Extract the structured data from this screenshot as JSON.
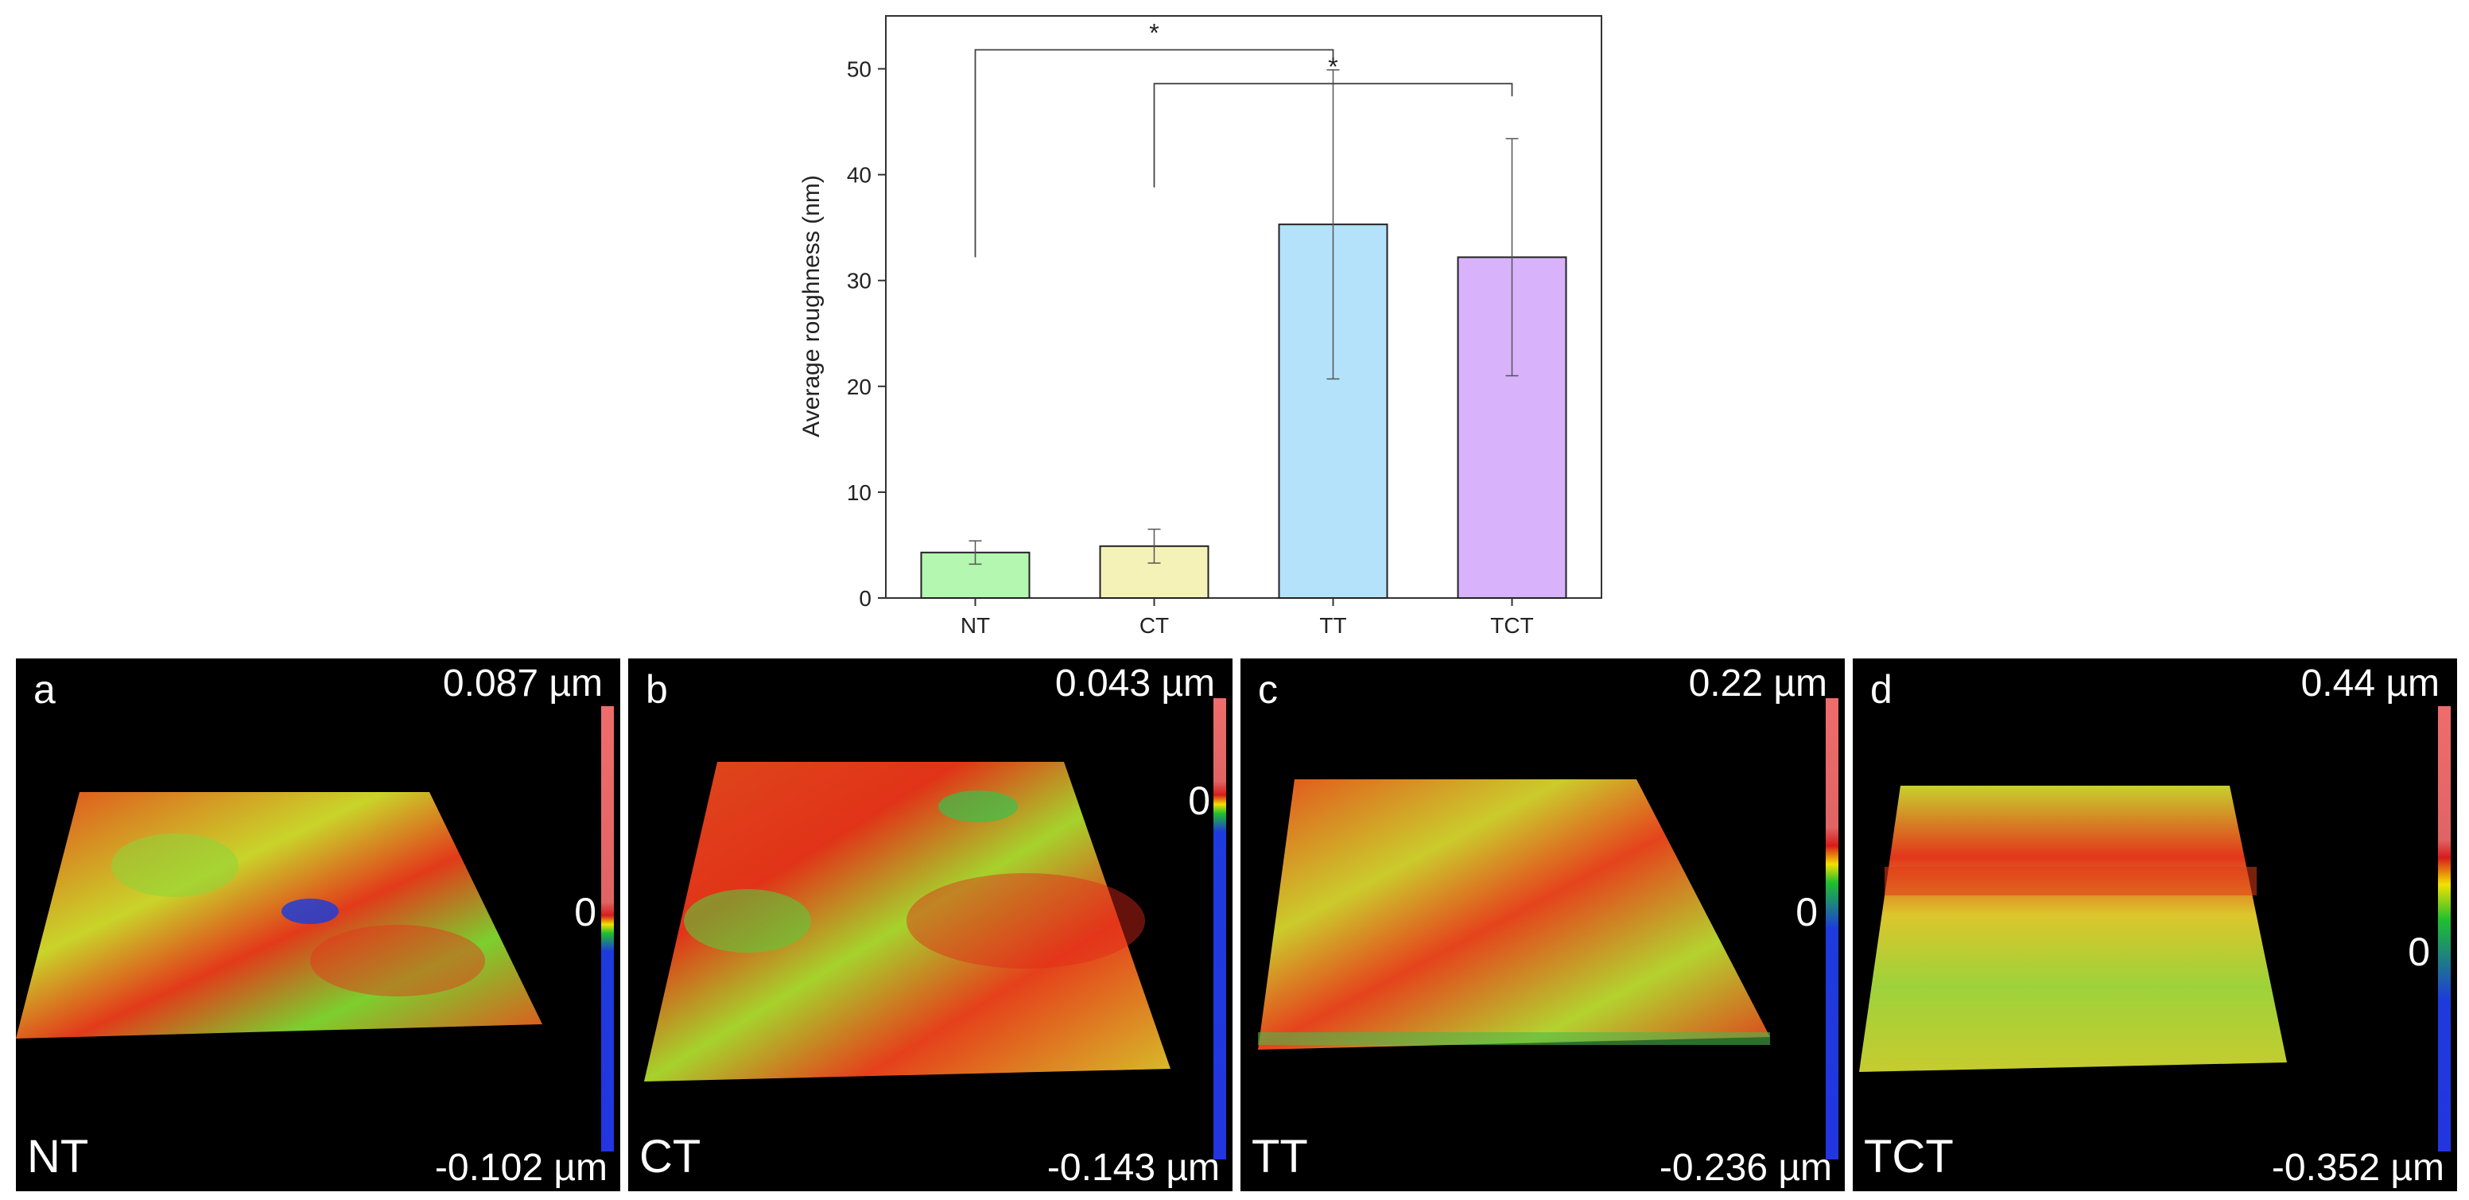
{
  "chart_data": {
    "type": "bar",
    "categories": [
      "NT",
      "CT",
      "TT",
      "TCT"
    ],
    "values": [
      4.3,
      4.9,
      35.3,
      32.2
    ],
    "errors": [
      1.1,
      1.6,
      14.6,
      11.2
    ],
    "colors": [
      "#b3f7b0",
      "#f5f2b8",
      "#b5e2fb",
      "#d8b2fb"
    ],
    "ylabel": "Average roughness (nm)",
    "xlabel": "",
    "ylim": [
      0,
      55
    ],
    "yticks": [
      0,
      10,
      20,
      30,
      40,
      50
    ],
    "significance": [
      {
        "from": "NT",
        "to": "TT",
        "label": "*"
      },
      {
        "from": "CT",
        "to": "TCT",
        "label": "*"
      }
    ]
  },
  "panels": [
    {
      "letter": "a",
      "sample": "NT",
      "max": "0.087 µm",
      "zero": "0",
      "min": "-0.102 µm"
    },
    {
      "letter": "b",
      "sample": "CT",
      "max": "0.043 µm",
      "zero": "0",
      "min": "-0.143 µm"
    },
    {
      "letter": "c",
      "sample": "TT",
      "max": "0.22 µm",
      "zero": "0",
      "min": "-0.236 µm"
    },
    {
      "letter": "d",
      "sample": "TCT",
      "max": "0.44 µm",
      "zero": "0",
      "min": "-0.352 µm"
    }
  ]
}
